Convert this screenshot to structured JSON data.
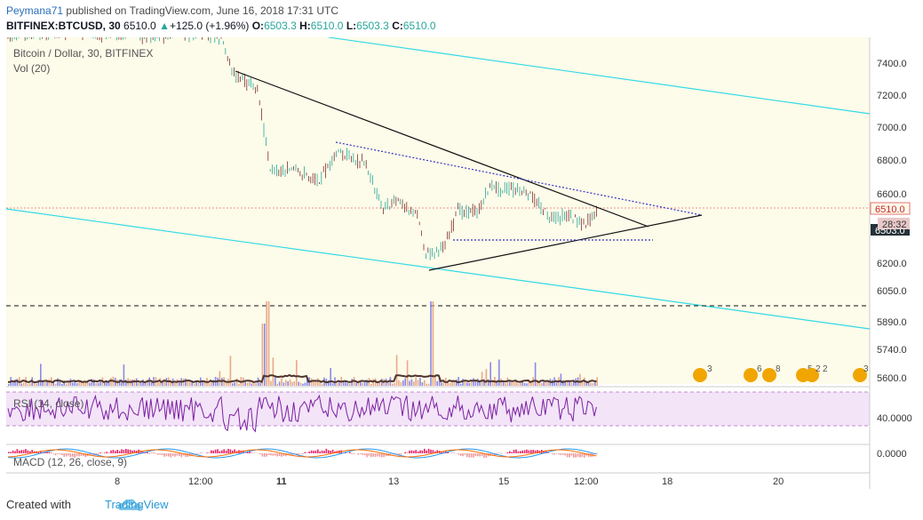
{
  "header": {
    "author": "Peymana71",
    "published_text": "published on TradingView.com, June 16, 2018 17:31 UTC",
    "symbol": "BITFINEX:BTCUSD, 30",
    "last": "6510.0",
    "change": "+125.0 (+1.96%)",
    "open_label": "O:",
    "open": "6503.3",
    "high_label": "H:",
    "high": "6510.0",
    "low_label": "L:",
    "low": "6503.3",
    "close_label": "C:",
    "close": "6510.0"
  },
  "chart": {
    "title": "Bitcoin / Dollar, 30, BITFINEX",
    "vol_label": "Vol (20)",
    "rsi_label": "RSI (14, close)",
    "macd_label": "MACD (12, 26, close, 9)",
    "price_axis": [
      "7400.0",
      "7200.0",
      "7000.0",
      "6800.0",
      "6600.0",
      "6200.0",
      "6050.0",
      "5890.0",
      "5740.0",
      "5600.0"
    ],
    "price_tag_last": "6510.0",
    "price_tag_timer": "28:32",
    "price_tag_hidden": "6503.0",
    "rsi_axis": "40.0000",
    "macd_axis": "0.0000",
    "time_axis": [
      "8",
      "12:00",
      "11",
      "13",
      "15",
      "12:00",
      "18",
      "20"
    ],
    "events": [
      "3",
      "6",
      "8",
      "5",
      "2",
      "2",
      "3"
    ],
    "colors": {
      "background": "#fdfbe9",
      "channel": "#32d9e8",
      "trend": "#000000",
      "dotted": "#3333cc",
      "candle": "#1e7e6f",
      "rsi_fill": "#f3e4f8",
      "rsi_line": "#7b1fa2"
    }
  },
  "footer": {
    "created_with": "Created with",
    "brand": "TradingView"
  }
}
